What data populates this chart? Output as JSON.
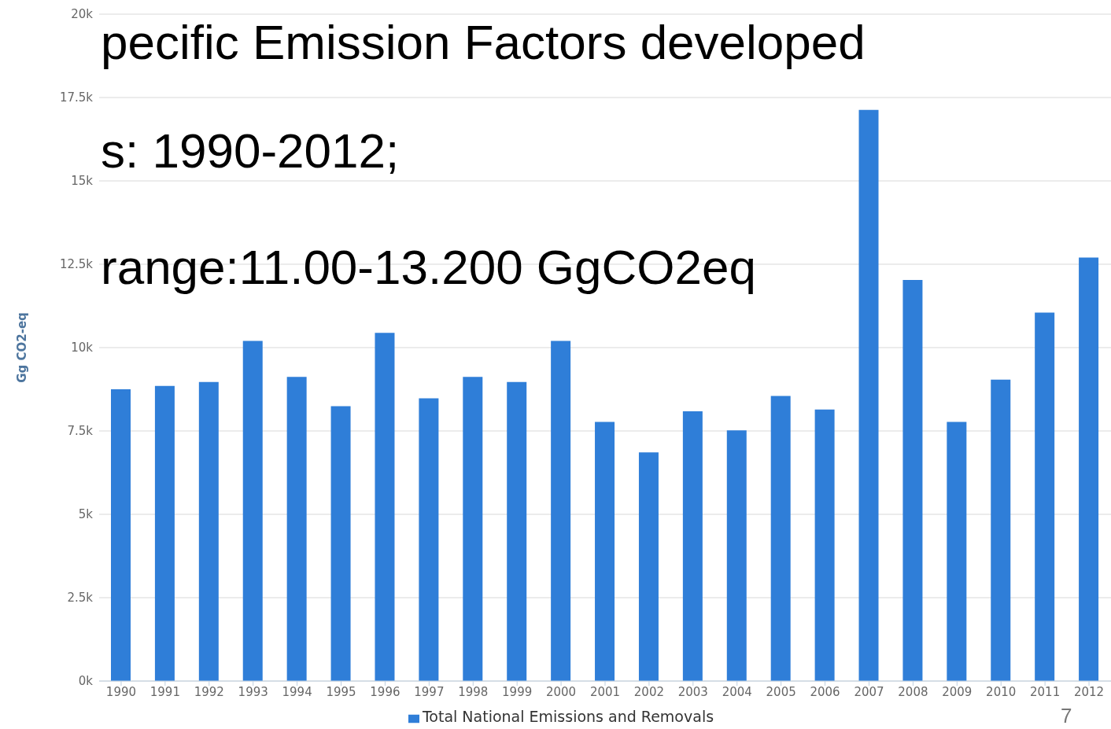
{
  "chart_data": {
    "type": "bar",
    "ylabel": "Gg CO2-eq",
    "categories": [
      "1990",
      "1991",
      "1992",
      "1993",
      "1994",
      "1995",
      "1996",
      "1997",
      "1998",
      "1999",
      "2000",
      "2001",
      "2002",
      "2003",
      "2004",
      "2005",
      "2006",
      "2007",
      "2008",
      "2009",
      "2010",
      "2011",
      "2012"
    ],
    "series": [
      {
        "name": "Total National Emissions and Removals",
        "color": "#2f7ed8",
        "values": [
          8750,
          8850,
          8970,
          10200,
          9120,
          8240,
          10440,
          8480,
          9120,
          8970,
          10200,
          7770,
          6860,
          8090,
          7520,
          8550,
          8140,
          17130,
          12030,
          7770,
          9040,
          11050,
          12700
        ]
      }
    ],
    "ylim": [
      0,
      20000
    ],
    "yticks": [
      {
        "value": 0,
        "label": "0k"
      },
      {
        "value": 2500,
        "label": "2.5k"
      },
      {
        "value": 5000,
        "label": "5k"
      },
      {
        "value": 7500,
        "label": "7.5k"
      },
      {
        "value": 10000,
        "label": "10k"
      },
      {
        "value": 12500,
        "label": "12.5k"
      },
      {
        "value": 15000,
        "label": "15k"
      },
      {
        "value": 17500,
        "label": "17.5k"
      },
      {
        "value": 20000,
        "label": "20k"
      }
    ],
    "grid": "y",
    "legend": "bottom",
    "annotations": [
      "pecific Emission Factors developed",
      "s: 1990-2012;",
      "range:11.00-13.200 GgCO2eq",
      "7"
    ]
  }
}
